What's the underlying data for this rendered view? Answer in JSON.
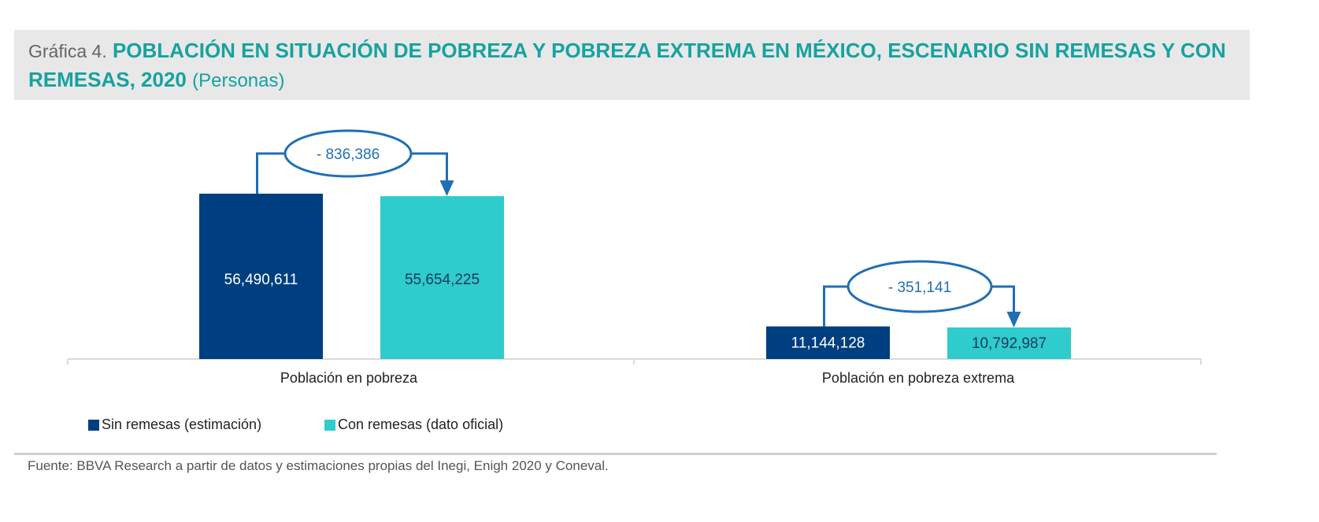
{
  "title": {
    "prefix": "Gráfica 4.",
    "main": "POBLACIÓN EN SITUACIÓN DE POBREZA Y POBREZA EXTREMA EN MÉXICO, ESCENARIO SIN REMESAS Y CON REMESAS, 2020",
    "unit": "(Personas)"
  },
  "chart_data": {
    "type": "bar",
    "categories": [
      "Población en pobreza",
      "Población en pobreza extrema"
    ],
    "series": [
      {
        "name": "Sin remesas (estimación)",
        "color": "#003f7f",
        "values": [
          56490611,
          11144128
        ],
        "labels": [
          "56,490,611",
          "11,144,128"
        ]
      },
      {
        "name": "Con remesas (dato oficial)",
        "color": "#2ecccc",
        "values": [
          55654225,
          10792987
        ],
        "labels": [
          "55,654,225",
          "10,792,987"
        ]
      }
    ],
    "annotations": [
      "- 836,386",
      "- 351,141"
    ],
    "annotation_color": "#1f6fb5",
    "ylim": [
      0,
      56490611
    ],
    "legend": "bottom-left"
  },
  "source": "Fuente: BBVA Research a partir de datos y estimaciones propias del Inegi, Enigh 2020 y Coneval."
}
